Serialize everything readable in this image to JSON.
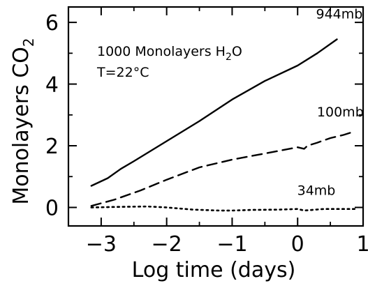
{
  "chart_data": {
    "type": "line",
    "title": "",
    "xlabel": "Log time (days)",
    "ylabel": "Monolayers CO",
    "ylabel_subscript": "2",
    "xlim": [
      -3.5,
      1.0
    ],
    "ylim": [
      -0.6,
      6.5
    ],
    "xticks": [
      -3,
      -2,
      -1,
      0,
      1
    ],
    "xtick_labels": [
      "−3",
      "−2",
      "−1",
      "0",
      "1"
    ],
    "yticks": [
      0,
      2,
      4,
      6
    ],
    "ytick_labels": [
      "0",
      "2",
      "4",
      "6"
    ],
    "grid": false,
    "legend": "none",
    "annotations": {
      "line1": "1000 Monolayers H",
      "line1_subscript": "2",
      "line1_suffix": "O",
      "line2": "T=22°C"
    },
    "series": [
      {
        "name": "944mb",
        "style": "solid",
        "x": [
          -3.15,
          -2.9,
          -2.7,
          -2.5,
          -2.0,
          -1.5,
          -1.0,
          -0.5,
          0.0,
          0.3,
          0.6
        ],
        "y": [
          0.7,
          0.95,
          1.25,
          1.5,
          2.15,
          2.8,
          3.5,
          4.1,
          4.6,
          5.0,
          5.45
        ]
      },
      {
        "name": "100mb",
        "style": "dashed",
        "x": [
          -3.15,
          -2.8,
          -2.4,
          -2.0,
          -1.5,
          -1.0,
          -0.5,
          0.0,
          0.1,
          0.15,
          0.3,
          0.5,
          0.7,
          0.85
        ],
        "y": [
          0.05,
          0.25,
          0.55,
          0.9,
          1.3,
          1.55,
          1.75,
          1.95,
          1.9,
          2.0,
          2.1,
          2.25,
          2.35,
          2.45
        ]
      },
      {
        "name": "34mb",
        "style": "dotted",
        "x": [
          -3.15,
          -2.7,
          -2.3,
          -2.0,
          -1.6,
          -1.2,
          -1.0,
          -0.7,
          -0.3,
          0.0,
          0.1,
          0.4,
          0.7,
          0.9
        ],
        "y": [
          0.0,
          0.02,
          0.03,
          0.0,
          -0.07,
          -0.1,
          -0.1,
          -0.08,
          -0.07,
          -0.05,
          -0.1,
          -0.05,
          -0.05,
          -0.05
        ]
      }
    ]
  }
}
